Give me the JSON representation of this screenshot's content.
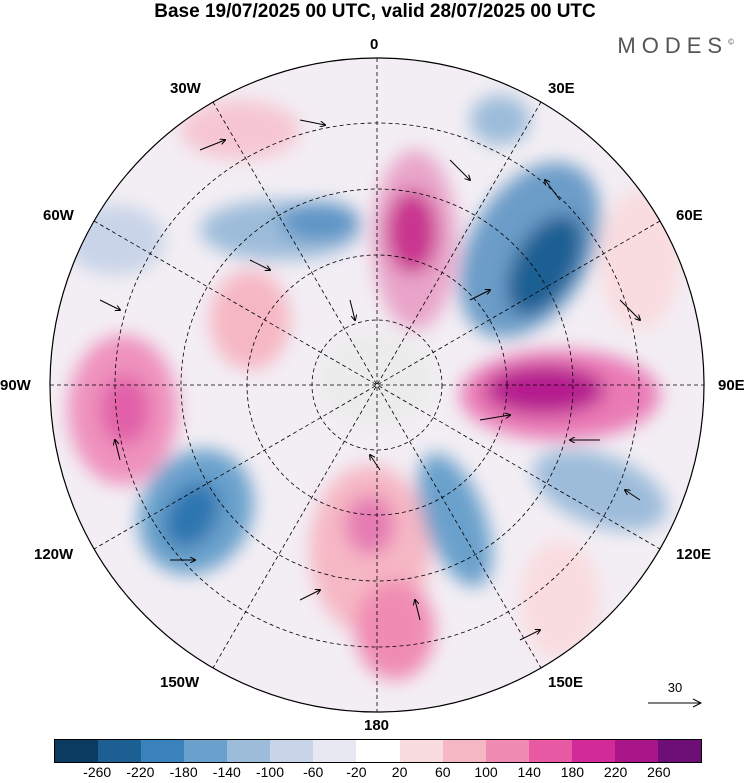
{
  "title": "Base 19/07/2025 00 UTC, valid 28/07/2025 00 UTC",
  "brand": "MODES",
  "brand_mark": "©",
  "longitude_labels": [
    "0",
    "30E",
    "60E",
    "90E",
    "120E",
    "150E",
    "180",
    "150W",
    "120W",
    "90W",
    "60W",
    "30W"
  ],
  "reference_vector": {
    "label": "30",
    "icon": "right-arrow-icon"
  },
  "colorbar": {
    "colors": [
      "#0b3b60",
      "#1c5f93",
      "#3a82bb",
      "#6aa1cc",
      "#9cbcda",
      "#c8d4e8",
      "#e8e8f3",
      "#ffffff",
      "#f9dcdf",
      "#f6b7c4",
      "#f08cb3",
      "#e85aa4",
      "#d22b99",
      "#a8168a",
      "#6e0e77"
    ],
    "ticks": [
      "-260",
      "-220",
      "-180",
      "-140",
      "-100",
      "-60",
      "-20",
      "20",
      "60",
      "100",
      "140",
      "180",
      "220",
      "260"
    ]
  }
}
